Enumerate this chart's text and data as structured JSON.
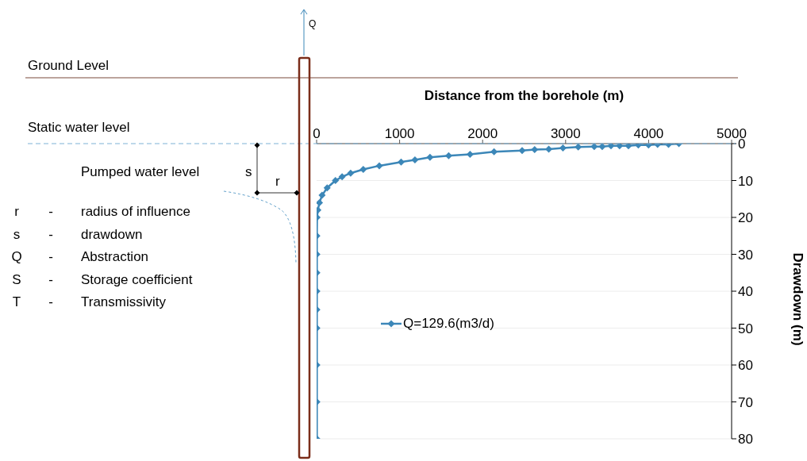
{
  "chart_data": {
    "type": "line",
    "xlabel": "Distance from the borehole (m)",
    "ylabel": "Drawdown (m)",
    "series": [
      {
        "name": "Q=129.6(m3/d)",
        "color": "#3c87b8",
        "x": [
          3,
          3,
          3,
          3,
          3,
          3,
          3,
          3,
          3,
          5,
          15,
          34,
          66,
          127,
          227,
          307,
          410,
          562,
          755,
          1018,
          1185,
          1366,
          1591,
          1849,
          2138,
          2476,
          2627,
          2797,
          2968,
          3152,
          3345,
          3441,
          3547,
          3650,
          3757,
          3876,
          3999,
          4108,
          4240,
          4365
        ],
        "values": [
          80,
          70,
          60,
          50,
          45,
          40,
          35,
          30,
          25,
          20,
          18,
          16,
          14,
          12,
          10,
          9,
          8,
          7,
          6,
          5,
          4.4,
          3.7,
          3.3,
          2.9,
          2.2,
          1.9,
          1.6,
          1.5,
          1.2,
          0.9,
          0.8,
          0.8,
          0.6,
          0.6,
          0.6,
          0.4,
          0.4,
          0.2,
          0.2,
          0
        ]
      }
    ],
    "xlim": [
      0,
      5000
    ],
    "xticks": [
      0,
      1000,
      2000,
      3000,
      4000,
      5000
    ],
    "ylim": [
      80,
      0
    ],
    "yticks": [
      0,
      10,
      20,
      30,
      40,
      50,
      60,
      70,
      80
    ],
    "grid": "y",
    "legend": "center",
    "marker": "diamond",
    "line_style": "solid",
    "ref_lines": [
      {
        "axis": "y",
        "value": 0,
        "label": "Static water level",
        "color": "#7fb2d6",
        "line_style": "dashed"
      }
    ],
    "annotations": [
      "Ground Level",
      "Pumped water level",
      "s",
      "r",
      "Q",
      "r - radius of influence",
      "s - drawdown",
      "Q - Abstraction",
      "S - Storage coefficient",
      "T - Transmissivity"
    ]
  }
}
